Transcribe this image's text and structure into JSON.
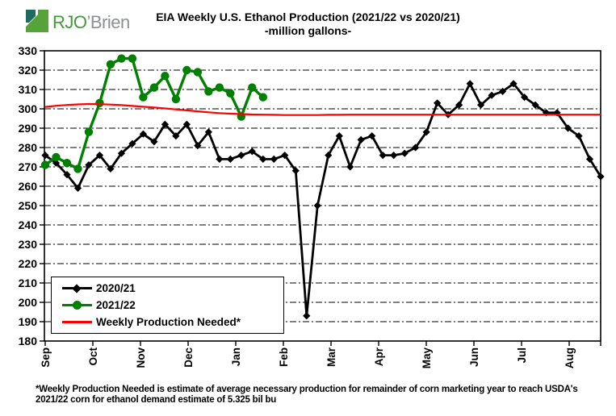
{
  "logo": {
    "text_primary": "RJO",
    "text_secondary": "’Brien",
    "colors": {
      "teal": "#1e6b60",
      "green": "#55a339",
      "text_green": "#3f9b35",
      "text_gray": "#8d9093"
    }
  },
  "header": {
    "title": "EIA Weekly U.S. Ethanol Production (2021/22 vs 2020/21)",
    "subtitle": "-million  gallons-"
  },
  "legend": {
    "items": [
      {
        "label": "2020/21",
        "color": "#000000",
        "marker": "diamond"
      },
      {
        "label": "2021/22",
        "color": "#008000",
        "marker": "circle"
      },
      {
        "label": "Weekly Production Needed*",
        "color": "#ff0000",
        "marker": "none"
      }
    ]
  },
  "footnote": "*Weekly Production Needed is estimate of average necessary production for remainder of corn marketing year to reach USDA's 2021/22 corn for ethanol demand estimate of 5.325 bil bu",
  "chart_data": {
    "type": "line",
    "title": "EIA Weekly U.S. Ethanol Production (2021/22 vs 2020/21)",
    "subtitle": "-million gallons-",
    "unit": "million gallons per week",
    "x_axis": {
      "tick_labels": [
        "Sep",
        "Oct",
        "Nov",
        "Dec",
        "Jan",
        "Feb",
        "Mar",
        "Apr",
        "May",
        "Jun",
        "Jul",
        "Aug"
      ],
      "points_per_year": 52,
      "note": "weekly data points from September through August"
    },
    "y_axis": {
      "min": 180,
      "max": 330,
      "step": 10,
      "tick_labels": [
        330,
        320,
        310,
        300,
        290,
        280,
        270,
        260,
        250,
        240,
        230,
        220,
        210,
        200,
        190,
        180
      ]
    },
    "grid": "horizontal dashed lines every 10",
    "legend_position": "inside lower-left",
    "series": [
      {
        "name": "2020/21",
        "color": "#000000",
        "marker": "diamond",
        "values": [
          276,
          272,
          266,
          259,
          271,
          276,
          269,
          277,
          282,
          287,
          283,
          292,
          286,
          292,
          281,
          288,
          274,
          274,
          276,
          278,
          274,
          274,
          276,
          268,
          193,
          250,
          276,
          286,
          270,
          284,
          286,
          276,
          276,
          277,
          280,
          288,
          303,
          297,
          302,
          313,
          302,
          307,
          309,
          313,
          306,
          302,
          298,
          298,
          290,
          286,
          274,
          265
        ]
      },
      {
        "name": "2021/22",
        "color": "#008000",
        "marker": "circle",
        "values": [
          271,
          275,
          272,
          269,
          288,
          303,
          323,
          326,
          326,
          306,
          311,
          317,
          305,
          320,
          319,
          309,
          311,
          308,
          296,
          311,
          306
        ]
      },
      {
        "name": "Weekly Production Needed*",
        "color": "#ff0000",
        "marker": "none",
        "values": [
          301,
          301.6,
          302,
          302.3,
          302.5,
          302.4,
          302.2,
          301.9,
          301.5,
          301.1,
          300.7,
          300.2,
          299.7,
          299.2,
          298.7,
          298.2,
          297.8,
          297.5,
          297.3,
          297.1,
          297,
          296.9,
          296.8,
          296.8,
          296.8,
          296.8,
          296.9,
          296.9,
          297,
          297,
          297,
          297,
          297,
          297,
          297,
          297,
          297,
          297,
          297,
          297,
          297,
          297,
          297,
          297,
          297,
          297,
          297,
          297,
          297,
          297,
          297,
          297
        ]
      }
    ]
  }
}
